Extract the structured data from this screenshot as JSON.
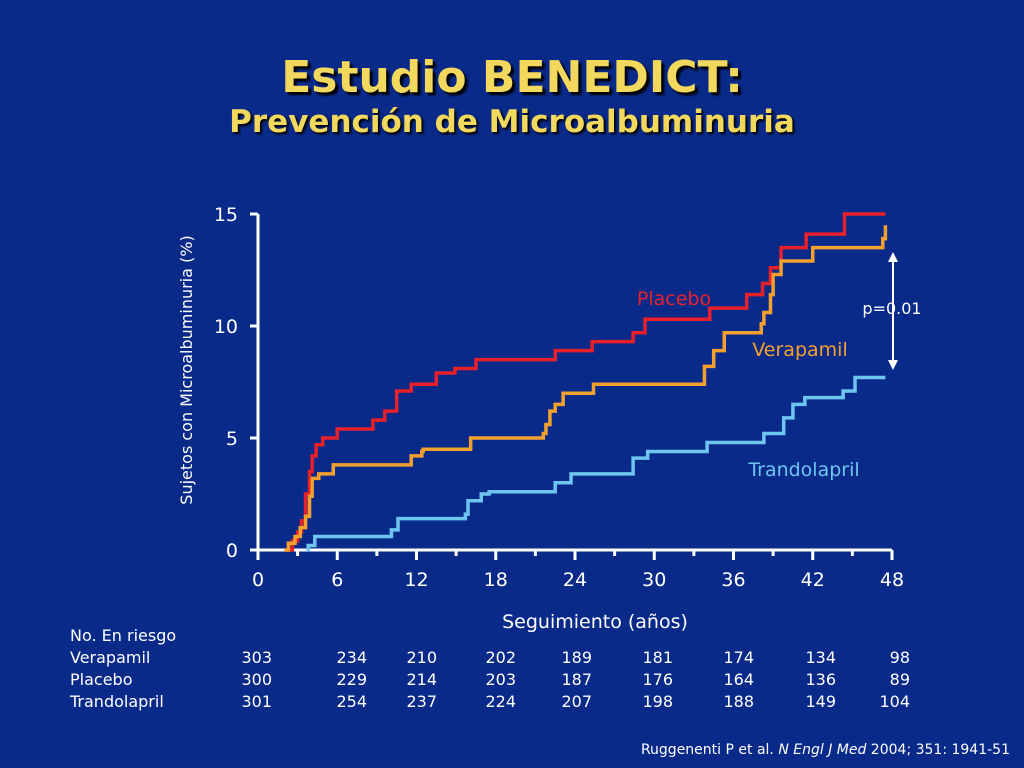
{
  "title": "Estudio BENEDICT:",
  "subtitle": "Prevención de Microalbuminuria",
  "chart_data": {
    "type": "line",
    "ylabel": "Sujetos con Microalbuminuria (%)",
    "xlabel": "Seguimiento (años)",
    "xlim": [
      0,
      48
    ],
    "ylim": [
      0,
      15
    ],
    "x_ticks": [
      0,
      6,
      12,
      18,
      24,
      30,
      36,
      42,
      48
    ],
    "y_ticks": [
      0,
      5,
      10,
      15
    ],
    "step": true,
    "annotation": "p=0.01",
    "series": [
      {
        "name": "Placebo",
        "color": "#e8202a",
        "points": [
          [
            2,
            0
          ],
          [
            2.6,
            0.4
          ],
          [
            3,
            0.8
          ],
          [
            3.3,
            1.3
          ],
          [
            3.6,
            2.5
          ],
          [
            3.9,
            3.5
          ],
          [
            4.1,
            4.2
          ],
          [
            4.4,
            4.7
          ],
          [
            4.9,
            5.0
          ],
          [
            6,
            5.4
          ],
          [
            8.7,
            5.8
          ],
          [
            9.6,
            6.2
          ],
          [
            10.5,
            7.1
          ],
          [
            11.6,
            7.4
          ],
          [
            13.5,
            7.9
          ],
          [
            14.9,
            8.1
          ],
          [
            16.5,
            8.5
          ],
          [
            22.5,
            8.9
          ],
          [
            25.3,
            9.3
          ],
          [
            28.4,
            9.7
          ],
          [
            29.3,
            10.3
          ],
          [
            34.2,
            10.8
          ],
          [
            37,
            11.4
          ],
          [
            38.2,
            11.9
          ],
          [
            38.8,
            12.6
          ],
          [
            39.6,
            13.5
          ],
          [
            41.5,
            14.1
          ],
          [
            44.4,
            15.0
          ],
          [
            47.5,
            15.0
          ]
        ]
      },
      {
        "name": "Verapamil",
        "color": "#f3a12e",
        "points": [
          [
            2,
            0
          ],
          [
            2.3,
            0.3
          ],
          [
            2.8,
            0.6
          ],
          [
            3.2,
            1.0
          ],
          [
            3.6,
            1.5
          ],
          [
            3.9,
            2.4
          ],
          [
            4.1,
            3.2
          ],
          [
            4.6,
            3.4
          ],
          [
            5.7,
            3.8
          ],
          [
            11.6,
            4.2
          ],
          [
            12.4,
            4.4
          ],
          [
            12.5,
            4.5
          ],
          [
            16.1,
            5.0
          ],
          [
            21.6,
            5.2
          ],
          [
            21.8,
            5.6
          ],
          [
            22.1,
            6.2
          ],
          [
            22.5,
            6.5
          ],
          [
            23.1,
            7.0
          ],
          [
            25.4,
            7.4
          ],
          [
            28.4,
            7.4
          ],
          [
            33.7,
            7.4
          ],
          [
            33.8,
            8.2
          ],
          [
            34.5,
            8.9
          ],
          [
            35.3,
            9.7
          ],
          [
            38.1,
            10.1
          ],
          [
            38.3,
            10.6
          ],
          [
            38.8,
            11.4
          ],
          [
            39,
            12.3
          ],
          [
            39.6,
            12.9
          ],
          [
            42,
            13.5
          ],
          [
            47.3,
            13.9
          ],
          [
            47.5,
            14.5
          ]
        ]
      },
      {
        "name": "Trandolapril",
        "color": "#6ec6f0",
        "points": [
          [
            3.7,
            0
          ],
          [
            3.8,
            0.2
          ],
          [
            4.3,
            0.6
          ],
          [
            10.1,
            0.9
          ],
          [
            10.6,
            1.4
          ],
          [
            15.7,
            1.6
          ],
          [
            15.9,
            2.2
          ],
          [
            16.9,
            2.5
          ],
          [
            17.5,
            2.6
          ],
          [
            22.5,
            3.0
          ],
          [
            23.7,
            3.4
          ],
          [
            28.4,
            4.1
          ],
          [
            29.5,
            4.4
          ],
          [
            34,
            4.8
          ],
          [
            38.3,
            5.2
          ],
          [
            39.8,
            5.9
          ],
          [
            40.5,
            6.5
          ],
          [
            41.4,
            6.8
          ],
          [
            44.3,
            7.1
          ],
          [
            45.2,
            7.7
          ],
          [
            47.5,
            7.7
          ]
        ]
      }
    ]
  },
  "risk_table": {
    "header": "No. En riesgo",
    "rows": [
      {
        "label": "Verapamil",
        "values": [
          "303",
          "234",
          "210",
          "202",
          "189",
          "181",
          "174",
          "134",
          "98"
        ]
      },
      {
        "label": "Placebo",
        "values": [
          "300",
          "229",
          "214",
          "203",
          "187",
          "176",
          "164",
          "136",
          "89"
        ]
      },
      {
        "label": "Trandolapril",
        "values": [
          "301",
          "254",
          "237",
          "224",
          "207",
          "198",
          "188",
          "149",
          "104"
        ]
      }
    ]
  },
  "citation": {
    "authors": "Ruggenenti P et al. ",
    "journal": "N Engl J Med",
    "rest": " 2004; 351: 1941-51"
  }
}
